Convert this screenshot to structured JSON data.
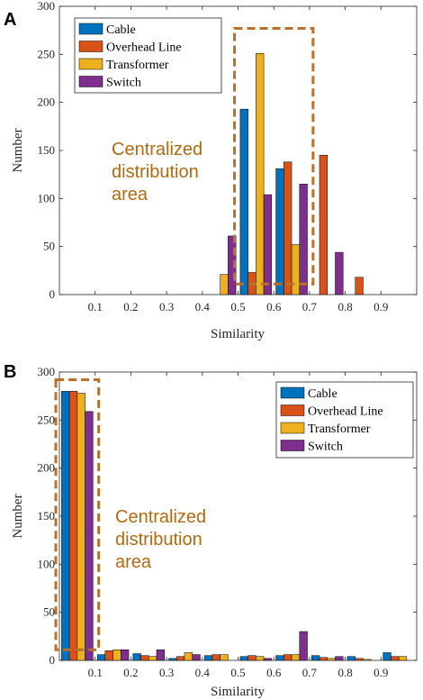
{
  "colors": {
    "axis": "#262626",
    "annotation": "#b06a10",
    "dashed_box": "#b8702a"
  },
  "chart_data": [
    {
      "panel_label": "A",
      "type": "bar",
      "xlabel": "Similarity",
      "ylabel": "Number",
      "xlim": [
        0,
        1
      ],
      "ylim": [
        0,
        300
      ],
      "xticks": [
        0.1,
        0.2,
        0.3,
        0.4,
        0.5,
        0.6,
        0.7,
        0.8,
        0.9
      ],
      "yticks": [
        0,
        50,
        100,
        150,
        200,
        250,
        300
      ],
      "x": [
        0.05,
        0.15,
        0.25,
        0.35,
        0.45,
        0.55,
        0.65,
        0.75,
        0.85,
        0.95
      ],
      "series": [
        {
          "name": "Cable",
          "color": "#0072BD",
          "values": [
            0,
            0,
            0,
            0,
            0,
            193,
            131,
            0,
            0,
            0
          ]
        },
        {
          "name": "Overhead Line",
          "color": "#D95319",
          "values": [
            0,
            0,
            0,
            0,
            0,
            23,
            138,
            145,
            18,
            0
          ]
        },
        {
          "name": "Transformer",
          "color": "#EDB120",
          "values": [
            0,
            0,
            0,
            0,
            21,
            251,
            52,
            0,
            0,
            0
          ]
        },
        {
          "name": "Switch",
          "color": "#7E2F8E",
          "values": [
            0,
            0,
            0,
            0,
            61,
            104,
            115,
            44,
            0,
            0
          ]
        }
      ],
      "legend_position": "top-left",
      "annotation": [
        "Centralized",
        "distribution",
        "area"
      ],
      "highlight_range": {
        "x": [
          0.49,
          0.71
        ],
        "y": [
          11,
          277
        ]
      }
    },
    {
      "panel_label": "B",
      "type": "bar",
      "xlabel": "Similarity",
      "ylabel": "Number",
      "xlim": [
        0,
        1
      ],
      "ylim": [
        0,
        300
      ],
      "xticks": [
        0.1,
        0.2,
        0.3,
        0.4,
        0.5,
        0.6,
        0.7,
        0.8,
        0.9
      ],
      "yticks": [
        0,
        50,
        100,
        150,
        200,
        250,
        300
      ],
      "x": [
        0.05,
        0.15,
        0.25,
        0.35,
        0.45,
        0.55,
        0.65,
        0.75,
        0.85,
        0.95
      ],
      "series": [
        {
          "name": "Cable",
          "color": "#0072BD",
          "values": [
            280,
            6,
            7,
            2,
            5,
            4,
            5,
            5,
            4,
            8
          ]
        },
        {
          "name": "Overhead Line",
          "color": "#D95319",
          "values": [
            280,
            10,
            5,
            4,
            6,
            5,
            6,
            3,
            2,
            4
          ]
        },
        {
          "name": "Transformer",
          "color": "#EDB120",
          "values": [
            278,
            11,
            4,
            8,
            6,
            4,
            6,
            2,
            1,
            4
          ]
        },
        {
          "name": "Switch",
          "color": "#7E2F8E",
          "values": [
            259,
            11,
            11,
            6,
            0,
            2,
            30,
            4,
            0,
            0
          ]
        }
      ],
      "legend_position": "top-right",
      "annotation": [
        "Centralized",
        "distribution",
        "area"
      ],
      "highlight_range": {
        "x": [
          -0.01,
          0.11
        ],
        "y": [
          11,
          292
        ]
      }
    }
  ]
}
